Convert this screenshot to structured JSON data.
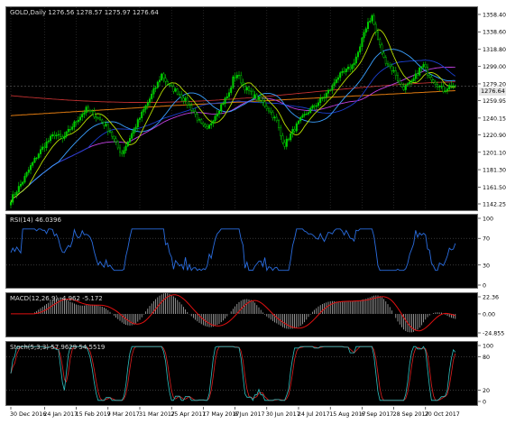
{
  "colors": {
    "background": "#000000",
    "axis_text": "#000000",
    "bull_candle": "#00c800",
    "bear_candle": "#000000",
    "candle_wick": "#00e000",
    "ma_fast": "#b8e000",
    "ma_mid1": "#3aa0ff",
    "ma_mid2": "#1a3fd0",
    "ma_mid3": "#c040e0",
    "ma_slow": "#e07a10",
    "ma_slowest": "#c03030",
    "rsi_line": "#2a6de0",
    "macd_hist": "#c8c8c8",
    "macd_signal": "#e01010",
    "stoch_main": "#2fbfbf",
    "stoch_signal": "#e02020"
  },
  "main": {
    "label": "GOLD,Daily  1276.56 1278.57 1275.97 1276.64",
    "current_price": "1276.64",
    "price_ticks": [
      "1358.40",
      "1338.60",
      "1318.80",
      "1299.00",
      "1279.20",
      "1259.95",
      "1240.15",
      "1220.90",
      "1201.10",
      "1181.30",
      "1161.50",
      "1142.25"
    ]
  },
  "rsi": {
    "label": "RSI(14) 46.0396",
    "ticks": [
      "100",
      "70",
      "30",
      "0"
    ]
  },
  "macd": {
    "label": "MACD(12,26,9) -4.962 -5.172",
    "ticks": [
      "22.36",
      "0.00",
      "-24.855"
    ]
  },
  "stoch": {
    "label": "Stoch(5,3,3) 57.9629 54.5519",
    "ticks": [
      "100",
      "80",
      "20",
      "0"
    ]
  },
  "dates": [
    "30 Dec 2016",
    "24 Jan 2017",
    "15 Feb 2017",
    "9 Mar 2017",
    "31 Mar 2017",
    "25 Apr 2017",
    "17 May 2017",
    "8 Jun 2017",
    "30 Jun 2017",
    "24 Jul 2017",
    "15 Aug 2017",
    "6 Sep 2017",
    "28 Sep 2017",
    "20 Oct 2017"
  ],
  "chart_data": {
    "type": "candlestick",
    "title": "GOLD,Daily",
    "ylim": [
      1142.25,
      1358.4
    ],
    "close_path": [
      [
        0,
        1147
      ],
      [
        6,
        1168
      ],
      [
        10,
        1185
      ],
      [
        14,
        1200
      ],
      [
        18,
        1212
      ],
      [
        22,
        1222
      ],
      [
        26,
        1216
      ],
      [
        30,
        1228
      ],
      [
        34,
        1240
      ],
      [
        38,
        1250
      ],
      [
        42,
        1244
      ],
      [
        46,
        1236
      ],
      [
        50,
        1225
      ],
      [
        54,
        1206
      ],
      [
        56,
        1200
      ],
      [
        60,
        1218
      ],
      [
        66,
        1245
      ],
      [
        70,
        1262
      ],
      [
        74,
        1280
      ],
      [
        76,
        1290
      ],
      [
        80,
        1276
      ],
      [
        84,
        1270
      ],
      [
        88,
        1260
      ],
      [
        92,
        1248
      ],
      [
        96,
        1232
      ],
      [
        99,
        1226
      ],
      [
        102,
        1240
      ],
      [
        106,
        1255
      ],
      [
        110,
        1268
      ],
      [
        112,
        1285
      ],
      [
        114,
        1290
      ],
      [
        118,
        1275
      ],
      [
        122,
        1266
      ],
      [
        126,
        1260
      ],
      [
        130,
        1250
      ],
      [
        134,
        1236
      ],
      [
        136,
        1220
      ],
      [
        138,
        1210
      ],
      [
        142,
        1225
      ],
      [
        146,
        1238
      ],
      [
        150,
        1248
      ],
      [
        154,
        1256
      ],
      [
        158,
        1265
      ],
      [
        162,
        1276
      ],
      [
        164,
        1286
      ],
      [
        168,
        1292
      ],
      [
        172,
        1300
      ],
      [
        176,
        1320
      ],
      [
        178,
        1338
      ],
      [
        180,
        1350
      ],
      [
        182,
        1356
      ],
      [
        184,
        1338
      ],
      [
        186,
        1322
      ],
      [
        188,
        1308
      ],
      [
        190,
        1302
      ],
      [
        194,
        1290
      ],
      [
        196,
        1278
      ],
      [
        198,
        1275
      ],
      [
        202,
        1280
      ],
      [
        206,
        1296
      ],
      [
        208,
        1300
      ],
      [
        210,
        1292
      ],
      [
        212,
        1286
      ],
      [
        216,
        1276
      ],
      [
        218,
        1272
      ],
      [
        222,
        1278
      ],
      [
        224,
        1276.64
      ]
    ]
  }
}
